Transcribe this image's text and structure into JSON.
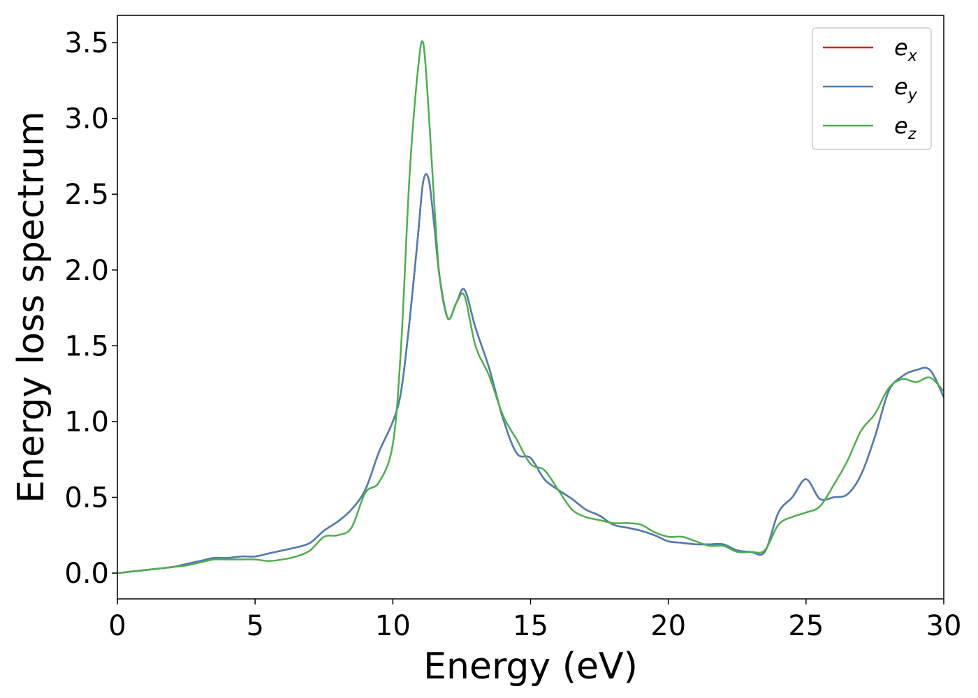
{
  "chart_data": {
    "type": "line",
    "title": "",
    "xlabel": "Energy (eV)",
    "ylabel": "Energy loss spectrum",
    "xlim": [
      0,
      30
    ],
    "ylim": [
      -0.17,
      3.68
    ],
    "x_ticks": [
      0,
      5,
      10,
      15,
      20,
      25,
      30
    ],
    "x_tick_labels": [
      "0",
      "5",
      "10",
      "15",
      "20",
      "25",
      "30"
    ],
    "y_ticks": [
      0.0,
      0.5,
      1.0,
      1.5,
      2.0,
      2.5,
      3.0,
      3.5
    ],
    "y_tick_labels": [
      "0.0",
      "0.5",
      "1.0",
      "1.5",
      "2.0",
      "2.5",
      "3.0",
      "3.5"
    ],
    "grid": false,
    "legend_position": "top-right",
    "x": [
      0,
      0.5,
      1,
      1.5,
      2,
      2.5,
      3,
      3.5,
      4,
      4.5,
      5,
      5.5,
      6,
      6.5,
      7,
      7.5,
      8,
      8.5,
      9,
      9.5,
      10,
      10.3,
      10.6,
      10.9,
      11.1,
      11.3,
      11.5,
      11.7,
      12,
      12.3,
      12.6,
      13,
      13.5,
      14,
      14.5,
      15,
      15.5,
      16,
      16.5,
      17,
      17.5,
      18,
      18.5,
      19,
      19.5,
      20,
      20.5,
      21,
      21.5,
      22,
      22.5,
      23,
      23.5,
      24,
      24.5,
      25,
      25.5,
      26,
      26.5,
      27,
      27.5,
      28,
      28.5,
      29,
      29.5,
      30
    ],
    "series": [
      {
        "name": "e",
        "subscript": "x",
        "color": "#e41a1c",
        "values": [
          0.0,
          0.01,
          0.02,
          0.03,
          0.04,
          0.06,
          0.08,
          0.1,
          0.1,
          0.11,
          0.11,
          0.13,
          0.15,
          0.17,
          0.2,
          0.28,
          0.34,
          0.42,
          0.55,
          0.8,
          1.0,
          1.2,
          1.65,
          2.2,
          2.58,
          2.6,
          2.3,
          1.95,
          1.68,
          1.78,
          1.87,
          1.62,
          1.35,
          1.02,
          0.79,
          0.76,
          0.62,
          0.55,
          0.49,
          0.42,
          0.38,
          0.32,
          0.3,
          0.28,
          0.25,
          0.21,
          0.2,
          0.19,
          0.19,
          0.19,
          0.15,
          0.14,
          0.14,
          0.4,
          0.5,
          0.62,
          0.49,
          0.5,
          0.52,
          0.65,
          0.9,
          1.2,
          1.3,
          1.34,
          1.34,
          1.16
        ]
      },
      {
        "name": "e",
        "subscript": "y",
        "color": "#4a7fb5",
        "values": [
          0.0,
          0.01,
          0.02,
          0.03,
          0.04,
          0.06,
          0.08,
          0.1,
          0.1,
          0.11,
          0.11,
          0.13,
          0.15,
          0.17,
          0.2,
          0.28,
          0.34,
          0.42,
          0.55,
          0.8,
          1.0,
          1.2,
          1.65,
          2.2,
          2.58,
          2.6,
          2.3,
          1.95,
          1.68,
          1.78,
          1.87,
          1.62,
          1.35,
          1.02,
          0.79,
          0.76,
          0.62,
          0.55,
          0.49,
          0.42,
          0.38,
          0.32,
          0.3,
          0.28,
          0.25,
          0.21,
          0.2,
          0.19,
          0.19,
          0.19,
          0.15,
          0.14,
          0.14,
          0.4,
          0.5,
          0.62,
          0.49,
          0.5,
          0.52,
          0.65,
          0.9,
          1.2,
          1.3,
          1.34,
          1.34,
          1.16
        ]
      },
      {
        "name": "e",
        "subscript": "z",
        "color": "#4daf4a",
        "values": [
          0.0,
          0.01,
          0.02,
          0.03,
          0.04,
          0.05,
          0.07,
          0.09,
          0.09,
          0.09,
          0.09,
          0.08,
          0.09,
          0.11,
          0.15,
          0.24,
          0.25,
          0.3,
          0.53,
          0.6,
          0.85,
          1.5,
          2.6,
          3.3,
          3.5,
          3.05,
          2.45,
          1.95,
          1.68,
          1.78,
          1.83,
          1.5,
          1.3,
          1.04,
          0.88,
          0.72,
          0.68,
          0.55,
          0.42,
          0.37,
          0.35,
          0.33,
          0.33,
          0.32,
          0.27,
          0.24,
          0.24,
          0.21,
          0.18,
          0.18,
          0.14,
          0.14,
          0.15,
          0.32,
          0.37,
          0.4,
          0.44,
          0.58,
          0.74,
          0.94,
          1.05,
          1.22,
          1.28,
          1.26,
          1.29,
          1.2
        ]
      }
    ]
  }
}
